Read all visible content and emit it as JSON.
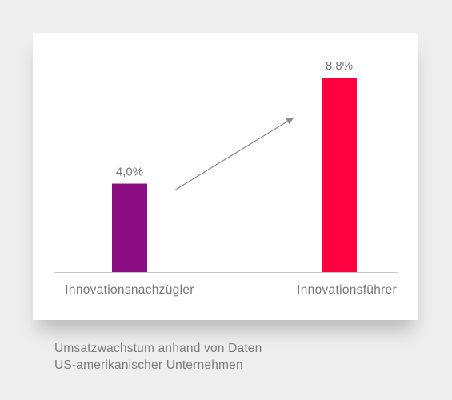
{
  "colors": {
    "background": "#eeeeee",
    "card": "#ffffff",
    "axis": "#c8c8c8",
    "text": "#777777",
    "arrow": "#8c8c8c"
  },
  "chart_data": {
    "type": "bar",
    "categories": [
      "Innovationsnachzügler",
      "Innovationsführer"
    ],
    "values": [
      4.0,
      8.8
    ],
    "value_labels": [
      "4,0%",
      "8,8%"
    ],
    "bar_colors": [
      "#8a0e82",
      "#ff0040"
    ],
    "unit": "%",
    "ylim": [
      0,
      8.8
    ],
    "grid": false,
    "legend": "none",
    "annotations": [
      "arrow-up-right"
    ],
    "title": "",
    "xlabel": "",
    "ylabel": ""
  },
  "caption": {
    "line1": "Umsatzwachstum anhand von Daten",
    "line2": "US-amerikanischer Unternehmen"
  }
}
